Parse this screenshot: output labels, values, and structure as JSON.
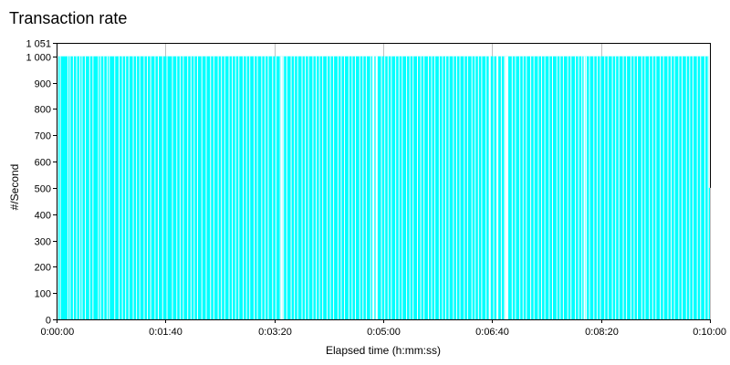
{
  "chart_data": {
    "type": "bar",
    "title": "Transaction rate",
    "xlabel": "Elapsed time (h:mm:ss)",
    "ylabel": "#/Second",
    "x_unit": "seconds",
    "xlim": [
      "0:00:00",
      "0:10:00"
    ],
    "ylim": [
      0,
      1051
    ],
    "y_ticks": [
      0,
      100,
      200,
      300,
      400,
      500,
      600,
      700,
      800,
      900,
      1000,
      1051
    ],
    "y_tick_labels": [
      "0",
      "100",
      "200",
      "300",
      "400",
      "500",
      "600",
      "700",
      "800",
      "900",
      "1 000",
      "1 051"
    ],
    "x_ticks": [
      "0:00:00",
      "0:01:40",
      "0:03:20",
      "0:05:00",
      "0:06:40",
      "0:08:20",
      "0:10:00"
    ],
    "grid": true,
    "legend": "none",
    "bar_value": 1000,
    "final_value": 500,
    "bar_color": "#00FFFF",
    "gridline_color": "#C0C0C0",
    "gap_seconds": [
      1,
      3,
      10,
      12,
      15,
      18,
      21,
      23,
      26,
      30,
      33,
      38,
      40,
      43,
      46,
      48,
      53,
      57,
      60,
      63,
      66,
      70,
      73,
      76,
      80,
      83,
      86,
      90,
      93,
      97,
      101,
      106,
      110,
      113,
      116,
      120,
      123,
      126,
      129,
      133,
      137,
      141,
      144,
      148,
      151,
      154,
      158,
      161,
      164,
      167,
      171,
      174,
      177,
      181,
      184,
      188,
      191,
      194,
      198,
      201,
      205,
      208,
      211,
      215,
      218,
      221,
      225,
      228,
      231,
      235,
      238,
      241,
      244,
      248,
      251,
      254,
      258,
      261,
      264,
      268,
      271,
      274,
      278,
      281,
      284,
      288,
      291,
      294,
      298,
      301,
      304,
      307,
      311,
      314,
      317,
      321,
      324,
      327,
      331,
      334,
      337,
      341,
      344,
      347,
      351,
      354,
      357,
      360,
      364,
      367,
      370,
      374,
      377,
      381,
      384,
      387,
      390,
      394,
      397,
      401,
      404,
      408,
      411,
      414,
      418,
      421,
      425,
      428,
      431,
      435,
      438,
      442,
      445,
      448,
      452,
      455,
      459,
      462,
      465,
      469,
      472,
      476,
      479,
      482,
      486,
      489,
      493,
      496,
      499,
      503,
      506,
      510,
      513,
      516,
      520,
      523,
      527,
      530,
      533,
      537,
      540,
      544,
      547,
      550,
      554,
      557,
      561,
      564,
      567,
      571,
      574,
      578,
      581,
      584,
      588,
      591,
      595,
      598
    ],
    "wide_gap_seconds": [
      [
        206,
        207
      ],
      [
        290,
        291
      ],
      [
        293,
        294
      ],
      [
        397,
        398
      ],
      [
        404,
        405
      ],
      [
        412,
        414
      ],
      [
        484,
        485
      ]
    ]
  }
}
